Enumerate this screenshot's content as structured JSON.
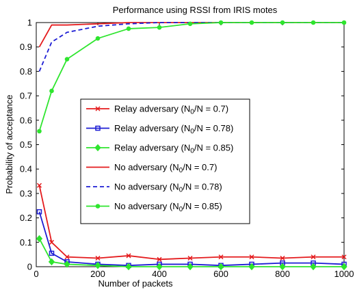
{
  "chart_data": {
    "type": "line",
    "title": "Performance using RSSI from IRIS motes",
    "xlabel": "Number of packets",
    "ylabel": "Probability of acceptance",
    "xlim": [
      0,
      1000
    ],
    "ylim": [
      0,
      1
    ],
    "xticks": [
      "0",
      "200",
      "400",
      "600",
      "800",
      "1000"
    ],
    "yticks": [
      "0",
      "0.1",
      "0.2",
      "0.3",
      "0.4",
      "0.5",
      "0.6",
      "0.7",
      "0.8",
      "0.9",
      "1"
    ],
    "grid": false,
    "legend_position": "center-left",
    "series": [
      {
        "legend_prefix": "Relay adversary (N",
        "legend_sub": "0",
        "legend_suffix": "/N = 0.7)",
        "color": "#e41a1c",
        "style": "solid",
        "marker": "x",
        "x": [
          10,
          50,
          100,
          200,
          300,
          400,
          500,
          600,
          700,
          800,
          900,
          1000
        ],
        "y": [
          0.333,
          0.1,
          0.04,
          0.035,
          0.045,
          0.03,
          0.035,
          0.04,
          0.04,
          0.035,
          0.04,
          0.04
        ]
      },
      {
        "legend_prefix": "Relay adversary (N",
        "legend_sub": "0",
        "legend_suffix": "/N = 0.78)",
        "color": "#1c1cd4",
        "style": "solid",
        "marker": "square",
        "x": [
          10,
          50,
          100,
          200,
          300,
          400,
          500,
          600,
          700,
          800,
          900,
          1000
        ],
        "y": [
          0.225,
          0.055,
          0.02,
          0.01,
          0.005,
          0.01,
          0.01,
          0.005,
          0.01,
          0.015,
          0.015,
          0.01
        ]
      },
      {
        "legend_prefix": "Relay adversary (N",
        "legend_sub": "0",
        "legend_suffix": "/N = 0.85)",
        "color": "#2ee52e",
        "style": "solid",
        "marker": "diamond",
        "x": [
          10,
          50,
          100,
          200,
          300,
          400,
          500,
          600,
          700,
          800,
          900,
          1000
        ],
        "y": [
          0.115,
          0.02,
          0.01,
          0.005,
          0.0,
          0.0,
          0.0,
          0.0,
          0.0,
          0.0,
          0.0,
          0.0
        ]
      },
      {
        "legend_prefix": "No adversary (N",
        "legend_sub": "0",
        "legend_suffix": "/N = 0.7)",
        "color": "#e41a1c",
        "style": "solid",
        "marker": "none",
        "x": [
          10,
          50,
          100,
          200,
          300,
          400,
          500,
          600,
          700,
          800,
          900,
          1000
        ],
        "y": [
          0.9,
          0.99,
          0.99,
          0.995,
          1.0,
          1.0,
          1.0,
          1.0,
          1.0,
          1.0,
          1.0,
          1.0
        ]
      },
      {
        "legend_prefix": "No adversary (N",
        "legend_sub": "0",
        "legend_suffix": "/N = 0.78)",
        "color": "#1c1cd4",
        "style": "dashed",
        "marker": "none",
        "x": [
          10,
          50,
          100,
          200,
          300,
          400,
          500,
          600,
          700,
          800,
          900,
          1000
        ],
        "y": [
          0.8,
          0.92,
          0.96,
          0.985,
          0.995,
          1.0,
          1.0,
          1.0,
          1.0,
          1.0,
          1.0,
          1.0
        ]
      },
      {
        "legend_prefix": "No adversary (N",
        "legend_sub": "0",
        "legend_suffix": "/N = 0.85)",
        "color": "#2ee52e",
        "style": "solid",
        "marker": "dot",
        "x": [
          10,
          50,
          100,
          200,
          300,
          400,
          500,
          600,
          700,
          800,
          900,
          1000
        ],
        "y": [
          0.555,
          0.72,
          0.85,
          0.935,
          0.975,
          0.98,
          0.995,
          1.0,
          1.0,
          1.0,
          1.0,
          1.0
        ]
      }
    ]
  }
}
